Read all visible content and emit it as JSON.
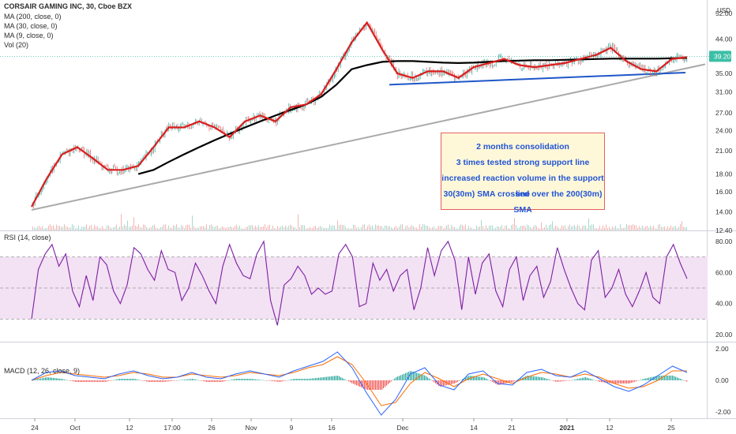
{
  "legend": {
    "title": "CORSAIR GAMING INC, 30, Cboe BZX",
    "ma200": "MA (200, close, 0)",
    "ma30": "MA (30, close, 0)",
    "ma9": "MA (9, close, 0)",
    "vol": "Vol (20)"
  },
  "currency": "USD",
  "price_badge": "39.20",
  "rsi_label": "RSI (14, close)",
  "macd_label": "MACD (12, 26, close, 9)",
  "note_lines": [
    "2 months consolidation",
    "3 times tested strong support line",
    "increased reaction volume in the support line",
    "30(30m) SMA crossed over the 200(30m) SMA"
  ],
  "colors": {
    "price_up": "#26a69a",
    "price_down": "#ef5350",
    "ma_short": "#d91e1e",
    "ma_long": "#000000",
    "trend_line": "#aaaaaa",
    "support_line": "#1e56c8",
    "rsi_line": "#7b1fa2",
    "rsi_band": "#f3e1f4",
    "macd_line": "#2962ff",
    "signal_line": "#ff6d00",
    "badge": "#3cbfa6"
  },
  "chart_data": [
    {
      "type": "line",
      "title": "CORSAIR GAMING INC, 30, Cboe BZX",
      "x_tick_labels": [
        "24",
        "Oct",
        "12",
        "17:00",
        "26",
        "Nov",
        "9",
        "16",
        "Dec",
        "14",
        "21",
        "2021",
        "12",
        "25"
      ],
      "y_tick_labels": [
        "52.00",
        "44.00",
        "39.20",
        "35.00",
        "31.00",
        "27.00",
        "24.00",
        "21.00",
        "18.00",
        "16.00",
        "14.00",
        "12.40"
      ],
      "ylim": [
        12.4,
        54
      ],
      "y_scale": "log",
      "series": [
        {
          "name": "MA (9, close, 0)",
          "values": [
            14.5,
            17.5,
            20.5,
            21.5,
            20,
            18.5,
            18.5,
            19,
            21.5,
            24.5,
            24.5,
            25.5,
            24.5,
            23,
            25.5,
            26.5,
            25.5,
            28,
            28.5,
            30.5,
            36,
            43,
            49,
            41,
            35,
            34,
            35.5,
            35.5,
            34,
            36.5,
            37.5,
            38.5,
            37,
            36.5,
            37,
            37.5,
            38.5,
            39.5,
            41.5,
            38,
            36,
            35.5,
            38.5,
            39
          ]
        },
        {
          "name": "MA (200, close, 0)",
          "values": [
            null,
            null,
            null,
            null,
            null,
            null,
            null,
            18,
            18.5,
            19.5,
            20.5,
            21.5,
            22.5,
            23.5,
            24.5,
            25.5,
            26.5,
            27.5,
            28.5,
            30,
            32.5,
            36,
            37,
            37.8,
            38,
            38,
            37.8,
            37.6,
            37.5,
            37.6,
            37.8,
            38,
            38.1,
            38.2,
            38.2,
            38.3,
            38.4,
            38.5,
            38.6,
            38.6,
            38.6,
            38.6,
            38.7,
            38.8
          ]
        },
        {
          "name": "uptrend line",
          "values_at_ends": [
            14.2,
            37.2
          ]
        },
        {
          "name": "support line",
          "values_at_ends": [
            32.5,
            35.2
          ]
        }
      ]
    },
    {
      "type": "line",
      "title": "RSI (14, close)",
      "y_tick_labels": [
        "80.00",
        "60.00",
        "40.00",
        "20.00"
      ],
      "ylim": [
        17,
        83
      ],
      "band": [
        30,
        70
      ],
      "values": [
        30,
        62,
        72,
        78,
        64,
        72,
        48,
        38,
        58,
        42,
        70,
        65,
        48,
        40,
        52,
        76,
        72,
        62,
        55,
        74,
        62,
        60,
        42,
        50,
        66,
        58,
        48,
        40,
        64,
        78,
        66,
        58,
        56,
        72,
        80,
        42,
        26,
        52,
        56,
        64,
        58,
        46,
        50,
        46,
        48,
        72,
        78,
        70,
        38,
        40,
        66,
        55,
        62,
        48,
        58,
        62,
        36,
        50,
        76,
        58,
        74,
        80,
        68,
        36,
        70,
        46,
        66,
        72,
        48,
        38,
        62,
        70,
        42,
        58,
        64,
        44,
        54,
        76,
        62,
        50,
        40,
        36,
        68,
        74,
        44,
        50,
        62,
        46,
        38,
        48,
        60,
        44,
        40,
        70,
        78,
        66,
        56
      ]
    },
    {
      "type": "line",
      "title": "MACD (12, 26, close, 9)",
      "y_tick_labels": [
        "2.00",
        "0.00",
        "-2.00"
      ],
      "ylim": [
        -2.4,
        2.3
      ],
      "series": [
        {
          "name": "MACD",
          "values": [
            0,
            0.5,
            0.6,
            0.3,
            0.2,
            0.1,
            0.4,
            0.6,
            0.3,
            0.1,
            0.2,
            0.5,
            0.2,
            0.1,
            0.4,
            0.6,
            0.4,
            0.2,
            0.6,
            0.9,
            1.2,
            1.8,
            0.8,
            -0.8,
            -2.2,
            -1.2,
            0.4,
            0.8,
            -0.3,
            -0.6,
            0.4,
            0.6,
            -0.2,
            -0.3,
            0.5,
            0.7,
            0.3,
            0.2,
            0.6,
            0.1,
            -0.4,
            -0.7,
            -0.3,
            0.3,
            0.9,
            0.5
          ]
        },
        {
          "name": "Signal",
          "values": [
            0,
            0.3,
            0.5,
            0.4,
            0.3,
            0.2,
            0.3,
            0.5,
            0.4,
            0.2,
            0.2,
            0.4,
            0.3,
            0.2,
            0.3,
            0.5,
            0.4,
            0.3,
            0.5,
            0.8,
            1.0,
            1.5,
            1.0,
            -0.2,
            -1.6,
            -1.4,
            -0.2,
            0.5,
            0.1,
            -0.4,
            0.1,
            0.4,
            0.1,
            -0.2,
            0.2,
            0.5,
            0.4,
            0.2,
            0.4,
            0.2,
            -0.2,
            -0.5,
            -0.4,
            0.0,
            0.6,
            0.6
          ]
        }
      ]
    }
  ]
}
